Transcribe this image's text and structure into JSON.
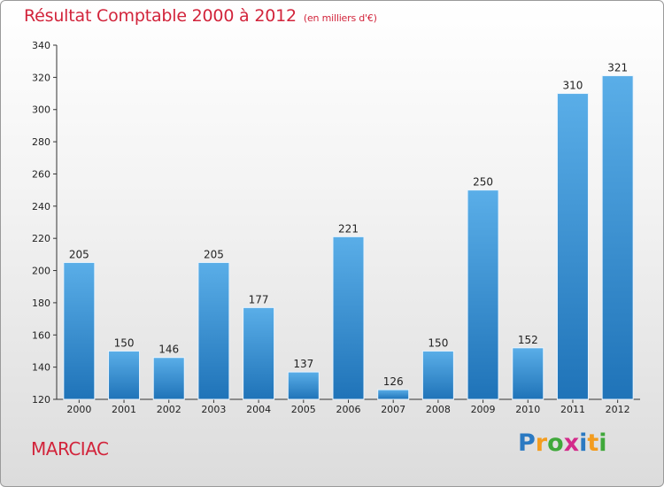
{
  "header": {
    "title": "Résultat Comptable 2000 à 2012",
    "subtitle": "(en milliers d'€)"
  },
  "footer": {
    "commune": "MARCIAC",
    "brand_letters": [
      "P",
      "r",
      "o",
      "x",
      "i",
      "t",
      "i"
    ],
    "brand_colors": [
      "#2a79c2",
      "#f39c1e",
      "#3fa83a",
      "#d32a8a",
      "#2a79c2",
      "#f39c1e",
      "#3fa83a"
    ]
  },
  "colors": {
    "accent": "#d2243b",
    "bar_top": "#5aaee8",
    "bar_bottom": "#1f73b8"
  },
  "chart_data": {
    "type": "bar",
    "title": "Résultat Comptable 2000 à 2012",
    "subtitle": "(en milliers d'€)",
    "xlabel": "",
    "ylabel": "",
    "categories": [
      "2000",
      "2001",
      "2002",
      "2003",
      "2004",
      "2005",
      "2006",
      "2007",
      "2008",
      "2009",
      "2010",
      "2011",
      "2012"
    ],
    "values": [
      205,
      150,
      146,
      205,
      177,
      137,
      221,
      126,
      150,
      250,
      152,
      310,
      321
    ],
    "ylim": [
      120,
      340
    ],
    "yticks": [
      120,
      140,
      160,
      180,
      200,
      220,
      240,
      260,
      280,
      300,
      320,
      340
    ],
    "grid": false,
    "legend": "none"
  }
}
